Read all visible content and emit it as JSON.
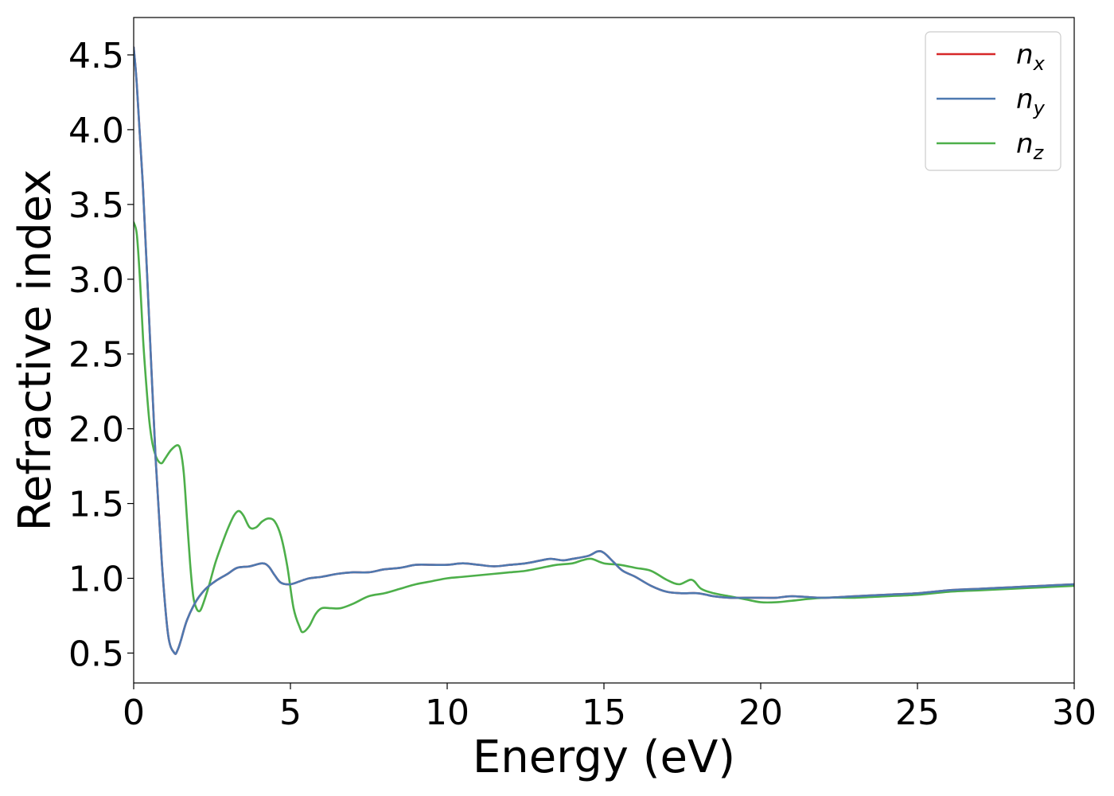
{
  "chart_data": {
    "type": "line",
    "title": "",
    "xlabel": "Energy (eV)",
    "ylabel": "Refractive index",
    "xlim": [
      0,
      30
    ],
    "ylim": [
      0.3,
      4.75
    ],
    "xticks": [
      "0",
      "5",
      "10",
      "15",
      "20",
      "25",
      "30"
    ],
    "yticks": [
      "0.5",
      "1.0",
      "1.5",
      "2.0",
      "2.5",
      "3.0",
      "3.5",
      "4.0",
      "4.5"
    ],
    "grid": false,
    "legend_position": "top-right",
    "series": [
      {
        "name": "n_x",
        "label_base": "n",
        "label_sub": "x",
        "color": "#d62728",
        "x": [
          0,
          0.1,
          0.3,
          0.5,
          0.7,
          0.9,
          1.1,
          1.3,
          1.4,
          1.5,
          1.7,
          2.0,
          2.3,
          2.6,
          3.0,
          3.3,
          3.7,
          4.1,
          4.3,
          4.5,
          4.7,
          5.0,
          5.3,
          5.6,
          6.0,
          6.5,
          7.0,
          7.5,
          8.0,
          8.5,
          9.0,
          9.5,
          10.0,
          10.5,
          11.0,
          11.5,
          12.0,
          12.5,
          13.0,
          13.3,
          13.7,
          14.0,
          14.5,
          14.8,
          15.0,
          15.3,
          15.6,
          16.0,
          16.5,
          17.0,
          17.5,
          18.0,
          18.5,
          19.0,
          19.5,
          20.0,
          20.5,
          21.0,
          22.0,
          23.0,
          24.0,
          25.0,
          26.0,
          27.0,
          28.0,
          29.0,
          30.0
        ],
        "y": [
          4.55,
          4.3,
          3.6,
          2.7,
          1.8,
          1.1,
          0.62,
          0.5,
          0.52,
          0.58,
          0.72,
          0.85,
          0.93,
          0.98,
          1.03,
          1.07,
          1.08,
          1.1,
          1.08,
          1.02,
          0.97,
          0.96,
          0.98,
          1.0,
          1.01,
          1.03,
          1.04,
          1.04,
          1.06,
          1.07,
          1.09,
          1.09,
          1.09,
          1.1,
          1.09,
          1.08,
          1.09,
          1.1,
          1.12,
          1.13,
          1.12,
          1.13,
          1.15,
          1.18,
          1.17,
          1.11,
          1.05,
          1.01,
          0.95,
          0.91,
          0.9,
          0.9,
          0.88,
          0.87,
          0.87,
          0.87,
          0.87,
          0.88,
          0.87,
          0.88,
          0.89,
          0.9,
          0.92,
          0.93,
          0.94,
          0.95,
          0.96
        ]
      },
      {
        "name": "n_y",
        "label_base": "n",
        "label_sub": "y",
        "color": "#4e79b0",
        "x": [
          0,
          0.1,
          0.3,
          0.5,
          0.7,
          0.9,
          1.1,
          1.3,
          1.4,
          1.5,
          1.7,
          2.0,
          2.3,
          2.6,
          3.0,
          3.3,
          3.7,
          4.1,
          4.3,
          4.5,
          4.7,
          5.0,
          5.3,
          5.6,
          6.0,
          6.5,
          7.0,
          7.5,
          8.0,
          8.5,
          9.0,
          9.5,
          10.0,
          10.5,
          11.0,
          11.5,
          12.0,
          12.5,
          13.0,
          13.3,
          13.7,
          14.0,
          14.5,
          14.8,
          15.0,
          15.3,
          15.6,
          16.0,
          16.5,
          17.0,
          17.5,
          18.0,
          18.5,
          19.0,
          19.5,
          20.0,
          20.5,
          21.0,
          22.0,
          23.0,
          24.0,
          25.0,
          26.0,
          27.0,
          28.0,
          29.0,
          30.0
        ],
        "y": [
          4.55,
          4.3,
          3.6,
          2.7,
          1.8,
          1.1,
          0.62,
          0.5,
          0.52,
          0.58,
          0.72,
          0.85,
          0.93,
          0.98,
          1.03,
          1.07,
          1.08,
          1.1,
          1.08,
          1.02,
          0.97,
          0.96,
          0.98,
          1.0,
          1.01,
          1.03,
          1.04,
          1.04,
          1.06,
          1.07,
          1.09,
          1.09,
          1.09,
          1.1,
          1.09,
          1.08,
          1.09,
          1.1,
          1.12,
          1.13,
          1.12,
          1.13,
          1.15,
          1.18,
          1.17,
          1.11,
          1.05,
          1.01,
          0.95,
          0.91,
          0.9,
          0.9,
          0.88,
          0.87,
          0.87,
          0.87,
          0.87,
          0.88,
          0.87,
          0.88,
          0.89,
          0.9,
          0.92,
          0.93,
          0.94,
          0.95,
          0.96
        ]
      },
      {
        "name": "n_z",
        "label_base": "n",
        "label_sub": "z",
        "color": "#4daf4a",
        "x": [
          0,
          0.1,
          0.2,
          0.3,
          0.4,
          0.5,
          0.6,
          0.7,
          0.8,
          0.9,
          1.0,
          1.2,
          1.4,
          1.5,
          1.6,
          1.7,
          1.8,
          1.9,
          2.0,
          2.1,
          2.2,
          2.4,
          2.6,
          2.8,
          3.0,
          3.2,
          3.35,
          3.5,
          3.7,
          3.9,
          4.1,
          4.3,
          4.5,
          4.7,
          4.9,
          5.1,
          5.3,
          5.4,
          5.6,
          5.8,
          6.0,
          6.3,
          6.6,
          7.0,
          7.5,
          8.0,
          8.5,
          9.0,
          9.5,
          10.0,
          10.5,
          11.0,
          11.5,
          12.0,
          12.5,
          13.0,
          13.5,
          14.0,
          14.3,
          14.6,
          15.0,
          15.5,
          16.0,
          16.5,
          17.0,
          17.4,
          17.8,
          18.1,
          18.5,
          19.0,
          19.5,
          20.0,
          20.5,
          21.0,
          22.0,
          23.0,
          24.0,
          25.0,
          26.0,
          27.0,
          28.0,
          29.0,
          30.0
        ],
        "y": [
          3.38,
          3.3,
          3.0,
          2.6,
          2.3,
          2.05,
          1.9,
          1.82,
          1.78,
          1.77,
          1.8,
          1.86,
          1.89,
          1.85,
          1.7,
          1.4,
          1.1,
          0.88,
          0.8,
          0.78,
          0.82,
          0.95,
          1.1,
          1.22,
          1.33,
          1.42,
          1.45,
          1.42,
          1.34,
          1.34,
          1.38,
          1.4,
          1.38,
          1.28,
          1.08,
          0.8,
          0.67,
          0.64,
          0.68,
          0.76,
          0.8,
          0.8,
          0.8,
          0.83,
          0.88,
          0.9,
          0.93,
          0.96,
          0.98,
          1.0,
          1.01,
          1.02,
          1.03,
          1.04,
          1.05,
          1.07,
          1.09,
          1.1,
          1.12,
          1.13,
          1.1,
          1.09,
          1.07,
          1.05,
          0.99,
          0.96,
          0.99,
          0.93,
          0.9,
          0.88,
          0.86,
          0.84,
          0.84,
          0.85,
          0.87,
          0.87,
          0.88,
          0.89,
          0.91,
          0.92,
          0.93,
          0.94,
          0.95
        ]
      }
    ]
  }
}
